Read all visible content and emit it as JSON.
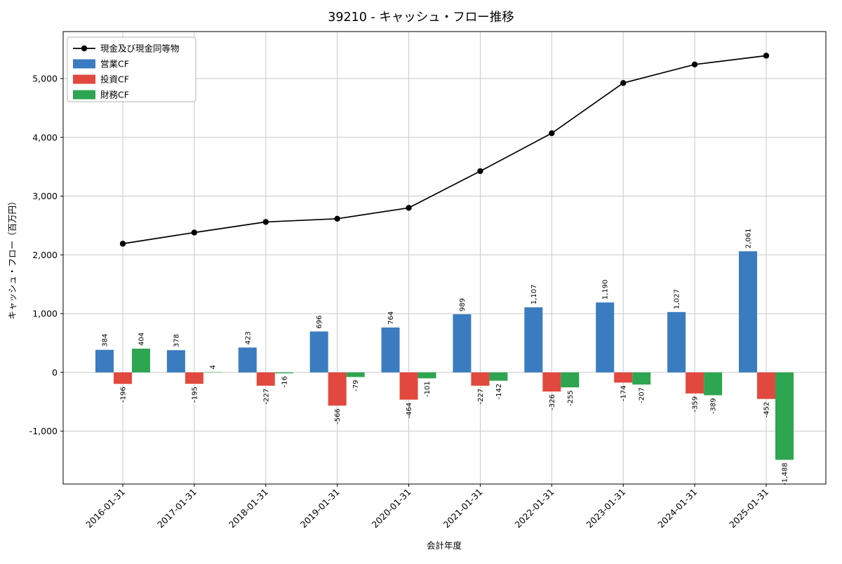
{
  "title": "39210 - キャッシュ・フロー推移",
  "chart_data": {
    "type": "bar",
    "subtype": "grouped-bars-with-line",
    "title": "39210 - キャッシュ・フロー推移",
    "xlabel": "会計年度",
    "ylabel": "キャッシュ・フロー（百万円）",
    "categories": [
      "2016-01-31",
      "2017-01-31",
      "2018-01-31",
      "2019-01-31",
      "2020-01-31",
      "2021-01-31",
      "2022-01-31",
      "2023-01-31",
      "2024-01-31",
      "2025-01-31"
    ],
    "series": [
      {
        "name": "現金及び現金同等物",
        "type": "line",
        "color": "#000000",
        "values": [
          2190,
          2380,
          2560,
          2615,
          2800,
          3425,
          4070,
          4925,
          5240,
          5390
        ]
      },
      {
        "name": "営業CF",
        "type": "bar",
        "color": "#3b7cc0",
        "values": [
          384,
          378,
          423,
          696,
          764,
          989,
          1107,
          1190,
          1027,
          2061
        ]
      },
      {
        "name": "投資CF",
        "type": "bar",
        "color": "#e1493e",
        "values": [
          -196,
          -195,
          -227,
          -566,
          -464,
          -227,
          -326,
          -174,
          -359,
          -452
        ]
      },
      {
        "name": "財務CF",
        "type": "bar",
        "color": "#2ea550",
        "values": [
          404,
          4,
          -16,
          -79,
          -101,
          -142,
          -255,
          -207,
          -389,
          -1488
        ]
      }
    ],
    "yticks": [
      -1000,
      0,
      1000,
      2000,
      3000,
      4000,
      5000
    ],
    "ylim": [
      -1900,
      5800
    ],
    "grid": true,
    "legend_position": "upper left",
    "bar_labels": true
  }
}
